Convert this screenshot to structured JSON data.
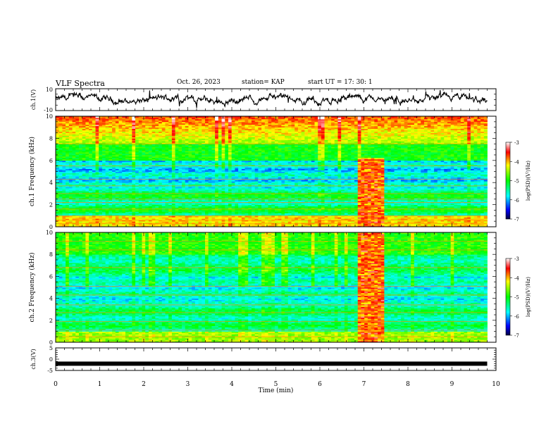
{
  "header": {
    "title": "VLF Spectra",
    "date": "Oct. 26, 2023",
    "station": "station= KAP",
    "start_ut": "start  UT  =   17: 30: 1"
  },
  "chart_data": [
    {
      "type": "line",
      "panel": "ch1-waveform",
      "ylabel": "ch.1(V)",
      "ylim": [
        -10,
        10
      ],
      "ytick_labels": [
        "10",
        "-10"
      ],
      "xlim": [
        0,
        10
      ],
      "data_end_min": 9.8,
      "baseline": 0
    },
    {
      "type": "heatmap",
      "panel": "ch1-spectrogram",
      "ylabel": "ch.1 Frequency (kHz)",
      "ylim": [
        0,
        10
      ],
      "yticks": [
        0,
        2,
        4,
        6,
        8,
        10
      ],
      "xlim": [
        0,
        10
      ],
      "data_end_min": 9.8,
      "colorbar": {
        "label": "log(PSD)(V²/Hz)",
        "range": [
          -7,
          -3
        ],
        "ticks": [
          -3,
          -4,
          -5,
          -6,
          -7
        ]
      },
      "burst_window_min": [
        6.85,
        7.45
      ],
      "burst_max_khz": 6.2
    },
    {
      "type": "heatmap",
      "panel": "ch2-spectrogram",
      "ylabel": "ch.2 Frequency (kHz)",
      "ylim": [
        0,
        10
      ],
      "yticks": [
        0,
        2,
        4,
        6,
        8,
        10
      ],
      "xlim": [
        0,
        10
      ],
      "data_end_min": 9.8,
      "colorbar": {
        "label": "log(PSD)(V²/Hz)",
        "range": [
          -7,
          -3
        ],
        "ticks": [
          -3,
          -4,
          -5,
          -6,
          -7
        ]
      },
      "burst_window_min": [
        6.85,
        7.45
      ],
      "burst_max_khz": 10
    },
    {
      "type": "line",
      "panel": "ch3-waveform",
      "ylabel": "ch.3(V)",
      "ylim": [
        -5,
        5
      ],
      "yticks": [
        -5,
        0,
        5
      ],
      "xlim": [
        0,
        10
      ],
      "data_end_min": 9.8,
      "level": -2
    }
  ],
  "xaxis": {
    "label": "Time  (min)",
    "ticks": [
      0,
      1,
      2,
      3,
      4,
      5,
      6,
      7,
      8,
      9,
      10
    ]
  },
  "colors": {
    "axis": "#000000",
    "trace": "#000000"
  }
}
